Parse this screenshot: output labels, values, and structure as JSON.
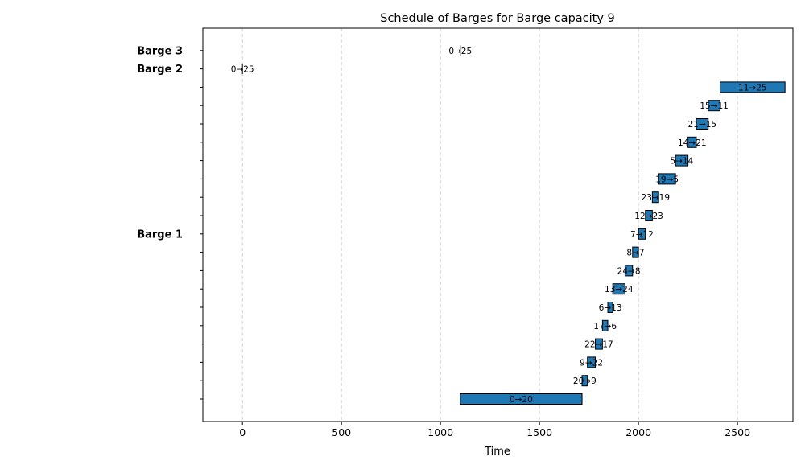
{
  "chart_data": {
    "type": "gantt",
    "title": "Schedule of Barges for Barge capacity 9",
    "xlabel": "Time",
    "ylabel": "",
    "xlim": [
      -200,
      2780
    ],
    "xticks": [
      0,
      500,
      1000,
      1500,
      2000,
      2500
    ],
    "xtick_labels": [
      "0",
      "500",
      "1000",
      "1500",
      "2000",
      "2500"
    ],
    "grid": "vertical dashed",
    "bar_color": "#1f77b4",
    "edge_color": "#000000",
    "row_count": 20,
    "group_labels": [
      {
        "label": "Barge 3",
        "row": 19
      },
      {
        "label": "Barge 2",
        "row": 18
      },
      {
        "label": "Barge 1",
        "row": 9
      }
    ],
    "tasks": [
      {
        "barge": "Barge 1",
        "label": "0→20",
        "start": 1100,
        "end": 1715,
        "row": 0
      },
      {
        "barge": "Barge 1",
        "label": "20→9",
        "start": 1715,
        "end": 1742,
        "row": 1
      },
      {
        "barge": "Barge 1",
        "label": "9→22",
        "start": 1742,
        "end": 1782,
        "row": 2
      },
      {
        "barge": "Barge 1",
        "label": "22→17",
        "start": 1782,
        "end": 1818,
        "row": 3
      },
      {
        "barge": "Barge 1",
        "label": "17→6",
        "start": 1818,
        "end": 1845,
        "row": 4
      },
      {
        "barge": "Barge 1",
        "label": "6→13",
        "start": 1845,
        "end": 1870,
        "row": 5
      },
      {
        "barge": "Barge 1",
        "label": "13→24",
        "start": 1870,
        "end": 1932,
        "row": 6
      },
      {
        "barge": "Barge 1",
        "label": "24→8",
        "start": 1932,
        "end": 1970,
        "row": 7
      },
      {
        "barge": "Barge 1",
        "label": "8→7",
        "start": 1970,
        "end": 2000,
        "row": 8
      },
      {
        "barge": "Barge 1",
        "label": "7→12",
        "start": 2000,
        "end": 2035,
        "row": 9
      },
      {
        "barge": "Barge 1",
        "label": "12→23",
        "start": 2035,
        "end": 2070,
        "row": 10
      },
      {
        "barge": "Barge 1",
        "label": "23→19",
        "start": 2070,
        "end": 2102,
        "row": 11
      },
      {
        "barge": "Barge 1",
        "label": "19→5",
        "start": 2102,
        "end": 2187,
        "row": 12
      },
      {
        "barge": "Barge 1",
        "label": "5→14",
        "start": 2187,
        "end": 2250,
        "row": 13
      },
      {
        "barge": "Barge 1",
        "label": "14→21",
        "start": 2250,
        "end": 2292,
        "row": 14
      },
      {
        "barge": "Barge 1",
        "label": "21→15",
        "start": 2292,
        "end": 2352,
        "row": 15
      },
      {
        "barge": "Barge 1",
        "label": "15→11",
        "start": 2352,
        "end": 2412,
        "row": 16
      },
      {
        "barge": "Barge 1",
        "label": "11→25",
        "start": 2412,
        "end": 2740,
        "row": 17
      },
      {
        "barge": "Barge 2",
        "label": "0→25",
        "start": 0,
        "end": 0,
        "row": 18
      },
      {
        "barge": "Barge 3",
        "label": "0→25",
        "start": 1100,
        "end": 1100,
        "row": 19
      }
    ]
  }
}
